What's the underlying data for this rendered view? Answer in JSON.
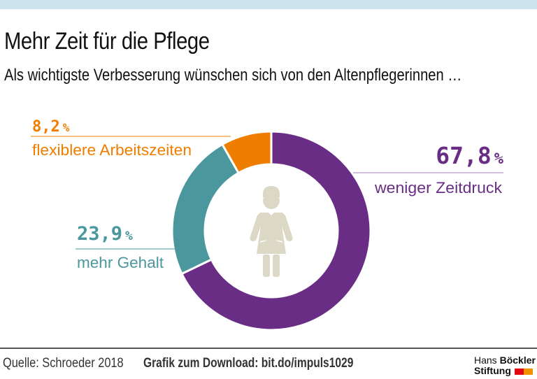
{
  "header": {
    "title": "Mehr Zeit für die Pflege",
    "subtitle": "Als wichtigste Verbesserung wünschen sich von den Altenpflegerinnen …"
  },
  "chart_data": {
    "type": "pie",
    "variant": "donut",
    "title": "Mehr Zeit für die Pflege",
    "subtitle": "Als wichtigste Verbesserung wünschen sich von den Altenpflegerinnen …",
    "unit": "%",
    "slices": [
      {
        "label": "weniger Zeitdruck",
        "value": 67.8,
        "display": "67,8",
        "color": "#6a2d86"
      },
      {
        "label": "mehr Gehalt",
        "value": 23.9,
        "display": "23,9",
        "color": "#4a979e"
      },
      {
        "label": "flexiblere Arbeitszeiten",
        "value": 8.2,
        "display": "8,2",
        "color": "#ef7d00"
      }
    ],
    "start_angle": "12 o'clock",
    "direction": "clockwise",
    "center_icon": "nurse-icon",
    "center_icon_color": "#dcd8c6"
  },
  "footer": {
    "source": "Quelle: Schroeder 2018",
    "download": "Grafik zum Download: bit.do/impuls1029",
    "logo_line1_regular": "Hans",
    "logo_line1_bold": "Böckler",
    "logo_line2": "Stiftung",
    "logo_colors": [
      "#e30613",
      "#f39200"
    ]
  },
  "colors": {
    "topbar": "#cde3ee"
  }
}
